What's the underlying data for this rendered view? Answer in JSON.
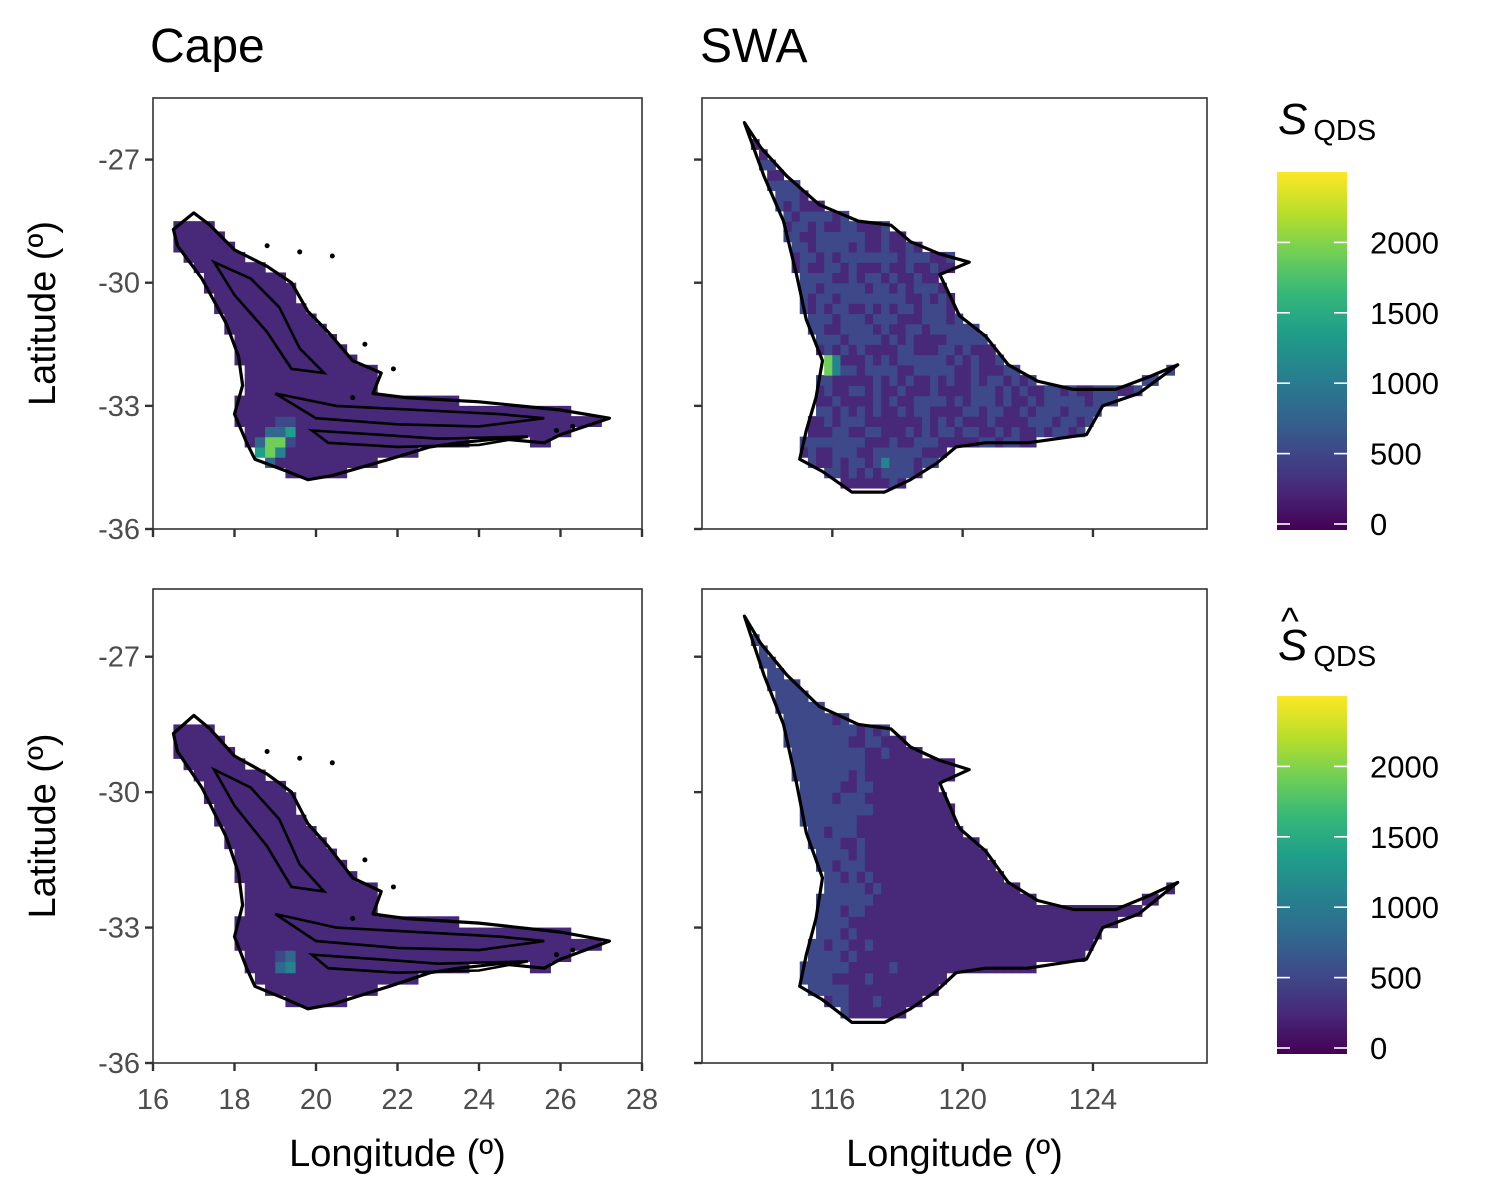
{
  "columns": [
    "Cape",
    "SWA"
  ],
  "legend": [
    {
      "symbol": "S",
      "symbol_hat": false,
      "subscript": "QDS",
      "ticks": [
        "2000",
        "1500",
        "1000",
        "500",
        "0"
      ]
    },
    {
      "symbol": "S",
      "symbol_hat": true,
      "subscript": "QDS",
      "ticks": [
        "2000",
        "1500",
        "1000",
        "500",
        "0"
      ]
    }
  ],
  "colors": {
    "viridis": [
      "#440154",
      "#482878",
      "#3e4989",
      "#31688e",
      "#26828e",
      "#1f9e89",
      "#35b779",
      "#6ece58",
      "#b5de2b",
      "#fde725"
    ],
    "na": "#ffffff",
    "border": "#333333"
  },
  "chart_data": [
    {
      "type": "heatmap",
      "region": "Cape",
      "row": 1,
      "title": "Cape",
      "xlabel": "",
      "ylabel": "Latitude (º)",
      "xlim": [
        16,
        28
      ],
      "ylim": [
        -36,
        -25.5
      ],
      "x_ticks": [],
      "y_ticks": [
        "-27",
        "-30",
        "-33",
        "-36"
      ],
      "value_range": [
        0,
        2500
      ],
      "hotspots": [
        {
          "lon": 19.0,
          "lat": -33.9,
          "value": 2350
        },
        {
          "lon": 18.8,
          "lat": -34.1,
          "value": 2100
        },
        {
          "lon": 19.3,
          "lat": -33.6,
          "value": 1400
        }
      ]
    },
    {
      "type": "heatmap",
      "region": "SWA",
      "row": 1,
      "title": "SWA",
      "xlabel": "",
      "ylabel": "",
      "xlim": [
        112,
        127.5
      ],
      "ylim": [
        -36,
        -25.5
      ],
      "x_ticks": [],
      "y_ticks": [],
      "value_range": [
        0,
        2500
      ],
      "hotspots": [
        {
          "lon": 115.9,
          "lat": -32.0,
          "value": 2450
        },
        {
          "lon": 117.6,
          "lat": -34.4,
          "value": 1100
        }
      ]
    },
    {
      "type": "heatmap",
      "region": "Cape",
      "row": 2,
      "title": "",
      "xlabel": "Longitude (º)",
      "ylabel": "Latitude (º)",
      "xlim": [
        16,
        28
      ],
      "ylim": [
        -36,
        -25.5
      ],
      "x_ticks": [
        "16",
        "18",
        "20",
        "22",
        "24",
        "26",
        "28"
      ],
      "y_ticks": [
        "-27",
        "-30",
        "-33",
        "-36"
      ],
      "value_range": [
        0,
        2500
      ],
      "hotspots": [
        {
          "lon": 19.3,
          "lat": -33.8,
          "value": 1300
        }
      ]
    },
    {
      "type": "heatmap",
      "region": "SWA",
      "row": 2,
      "title": "",
      "xlabel": "Longitude (º)",
      "ylabel": "",
      "xlim": [
        112,
        127.5
      ],
      "ylim": [
        -36,
        -25.5
      ],
      "x_ticks": [
        "116",
        "120",
        "124"
      ],
      "y_ticks": [],
      "value_range": [
        0,
        2500
      ],
      "hotspots": [
        {
          "lon": 115.6,
          "lat": -33.4,
          "value": 650
        }
      ]
    }
  ]
}
